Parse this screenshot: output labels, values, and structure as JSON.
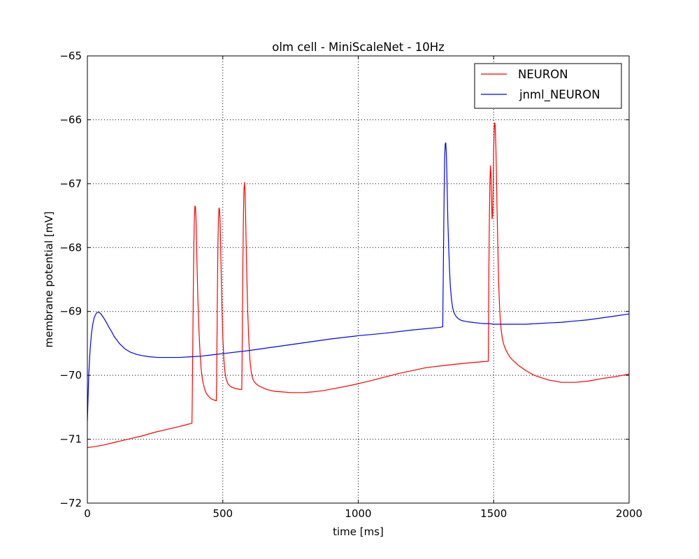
{
  "chart_data": {
    "type": "line",
    "title": "olm cell - MiniScaleNet - 10Hz",
    "xlabel": "time [ms]",
    "ylabel": "membrane potential [mV]",
    "xlim": [
      0,
      2000
    ],
    "ylim": [
      -72,
      -65
    ],
    "x_ticks": [
      0,
      500,
      1000,
      1500,
      2000
    ],
    "y_ticks": [
      -72,
      -71,
      -70,
      -69,
      -68,
      -67,
      -66,
      -65
    ],
    "x_tick_labels": [
      "0",
      "500",
      "1000",
      "1500",
      "2000"
    ],
    "y_tick_labels": [
      "−72",
      "−71",
      "−70",
      "−69",
      "−68",
      "−67",
      "−66",
      "−65"
    ],
    "grid": true,
    "legend_position": "top-right",
    "series": [
      {
        "name": "NEURON",
        "color": "#ff0000",
        "x": [
          0,
          20,
          60,
          100,
          150,
          200,
          250,
          300,
          350,
          386,
          387,
          389,
          391,
          393,
          395,
          397,
          399,
          401,
          403,
          405,
          408,
          412,
          416,
          420,
          425,
          430,
          435,
          440,
          446,
          452,
          458,
          464,
          470,
          476,
          477,
          478,
          480,
          482,
          484,
          486,
          488,
          490,
          492,
          494,
          497,
          500,
          504,
          508,
          512,
          516,
          520,
          525,
          530,
          536,
          542,
          548,
          554,
          560,
          566,
          570,
          571,
          572,
          574,
          576,
          578,
          580,
          582,
          584,
          586,
          589,
          592,
          596,
          600,
          605,
          610,
          616,
          622,
          628,
          635,
          645,
          655,
          670,
          690,
          720,
          750,
          780,
          800,
          830,
          870,
          920,
          980,
          1050,
          1150,
          1250,
          1350,
          1420,
          1480,
          1481,
          1482,
          1484,
          1486,
          1488,
          1490,
          1492,
          1494,
          1496,
          1498,
          1500,
          1502,
          1503,
          1504,
          1505,
          1506,
          1508,
          1510,
          1512,
          1514,
          1516,
          1518,
          1521,
          1524,
          1528,
          1532,
          1536,
          1541,
          1546,
          1552,
          1558,
          1565,
          1572,
          1580,
          1590,
          1600,
          1620,
          1650,
          1700,
          1750,
          1800,
          1850,
          1900,
          1950,
          2000
        ],
        "y": [
          -71.13,
          -71.12,
          -71.09,
          -71.05,
          -71.0,
          -70.95,
          -70.89,
          -70.84,
          -70.79,
          -70.75,
          -70.5,
          -69.6,
          -68.7,
          -68.0,
          -67.55,
          -67.35,
          -67.36,
          -67.55,
          -67.9,
          -68.3,
          -68.8,
          -69.3,
          -69.65,
          -69.9,
          -70.07,
          -70.17,
          -70.24,
          -70.29,
          -70.32,
          -70.35,
          -70.37,
          -70.38,
          -70.39,
          -70.4,
          -70.2,
          -69.7,
          -68.7,
          -67.95,
          -67.55,
          -67.38,
          -67.4,
          -67.6,
          -67.95,
          -68.4,
          -68.95,
          -69.4,
          -69.75,
          -69.95,
          -70.05,
          -70.1,
          -70.14,
          -70.16,
          -70.18,
          -70.19,
          -70.2,
          -70.21,
          -70.21,
          -70.22,
          -70.22,
          -70.22,
          -69.9,
          -69.3,
          -68.3,
          -67.55,
          -67.1,
          -66.98,
          -67.1,
          -67.45,
          -67.9,
          -68.5,
          -69.0,
          -69.45,
          -69.75,
          -69.95,
          -70.05,
          -70.1,
          -70.13,
          -70.15,
          -70.17,
          -70.19,
          -70.21,
          -70.23,
          -70.25,
          -70.26,
          -70.27,
          -70.27,
          -70.27,
          -70.26,
          -70.24,
          -70.2,
          -70.15,
          -70.08,
          -69.97,
          -69.88,
          -69.83,
          -69.8,
          -69.78,
          -69.3,
          -68.5,
          -67.6,
          -67.0,
          -66.72,
          -66.85,
          -67.2,
          -67.55,
          -67.5,
          -67.1,
          -66.5,
          -66.15,
          -66.06,
          -66.05,
          -66.07,
          -66.15,
          -66.4,
          -66.8,
          -67.3,
          -67.7,
          -68.1,
          -68.5,
          -68.85,
          -69.1,
          -69.3,
          -69.42,
          -69.5,
          -69.56,
          -69.61,
          -69.66,
          -69.7,
          -69.74,
          -69.77,
          -69.8,
          -69.84,
          -69.87,
          -69.93,
          -70.0,
          -70.07,
          -70.11,
          -70.11,
          -70.09,
          -70.05,
          -70.02,
          -69.98
        ]
      },
      {
        "name": "jnml_NEURON",
        "color": "#0000ff",
        "x": [
          0,
          5,
          10,
          15,
          20,
          25,
          30,
          35,
          40,
          45,
          50,
          60,
          70,
          80,
          90,
          100,
          120,
          140,
          160,
          180,
          200,
          230,
          260,
          300,
          340,
          380,
          420,
          460,
          500,
          600,
          700,
          800,
          900,
          1000,
          1100,
          1200,
          1300,
          1312,
          1313,
          1315,
          1317,
          1319,
          1321,
          1323,
          1325,
          1327,
          1329,
          1331,
          1334,
          1337,
          1340,
          1344,
          1348,
          1352,
          1356,
          1360,
          1366,
          1372,
          1380,
          1390,
          1400,
          1420,
          1440,
          1460,
          1480,
          1500,
          1540,
          1580,
          1620,
          1660,
          1700,
          1750,
          1800,
          1850,
          1900,
          1950,
          2000
        ],
        "y": [
          -70.72,
          -70.0,
          -69.6,
          -69.35,
          -69.2,
          -69.1,
          -69.05,
          -69.02,
          -69.01,
          -69.02,
          -69.04,
          -69.1,
          -69.17,
          -69.25,
          -69.32,
          -69.4,
          -69.51,
          -69.59,
          -69.64,
          -69.67,
          -69.69,
          -69.71,
          -69.72,
          -69.72,
          -69.72,
          -69.71,
          -69.7,
          -69.68,
          -69.66,
          -69.61,
          -69.55,
          -69.49,
          -69.43,
          -69.38,
          -69.34,
          -69.29,
          -69.25,
          -69.24,
          -68.8,
          -68.0,
          -67.2,
          -66.6,
          -66.38,
          -66.36,
          -66.5,
          -66.8,
          -67.2,
          -67.6,
          -68.0,
          -68.35,
          -68.6,
          -68.8,
          -68.93,
          -69.0,
          -69.04,
          -69.07,
          -69.1,
          -69.12,
          -69.14,
          -69.15,
          -69.16,
          -69.17,
          -69.18,
          -69.19,
          -69.19,
          -69.2,
          -69.2,
          -69.2,
          -69.2,
          -69.19,
          -69.18,
          -69.17,
          -69.15,
          -69.13,
          -69.1,
          -69.07,
          -69.04
        ]
      }
    ]
  }
}
